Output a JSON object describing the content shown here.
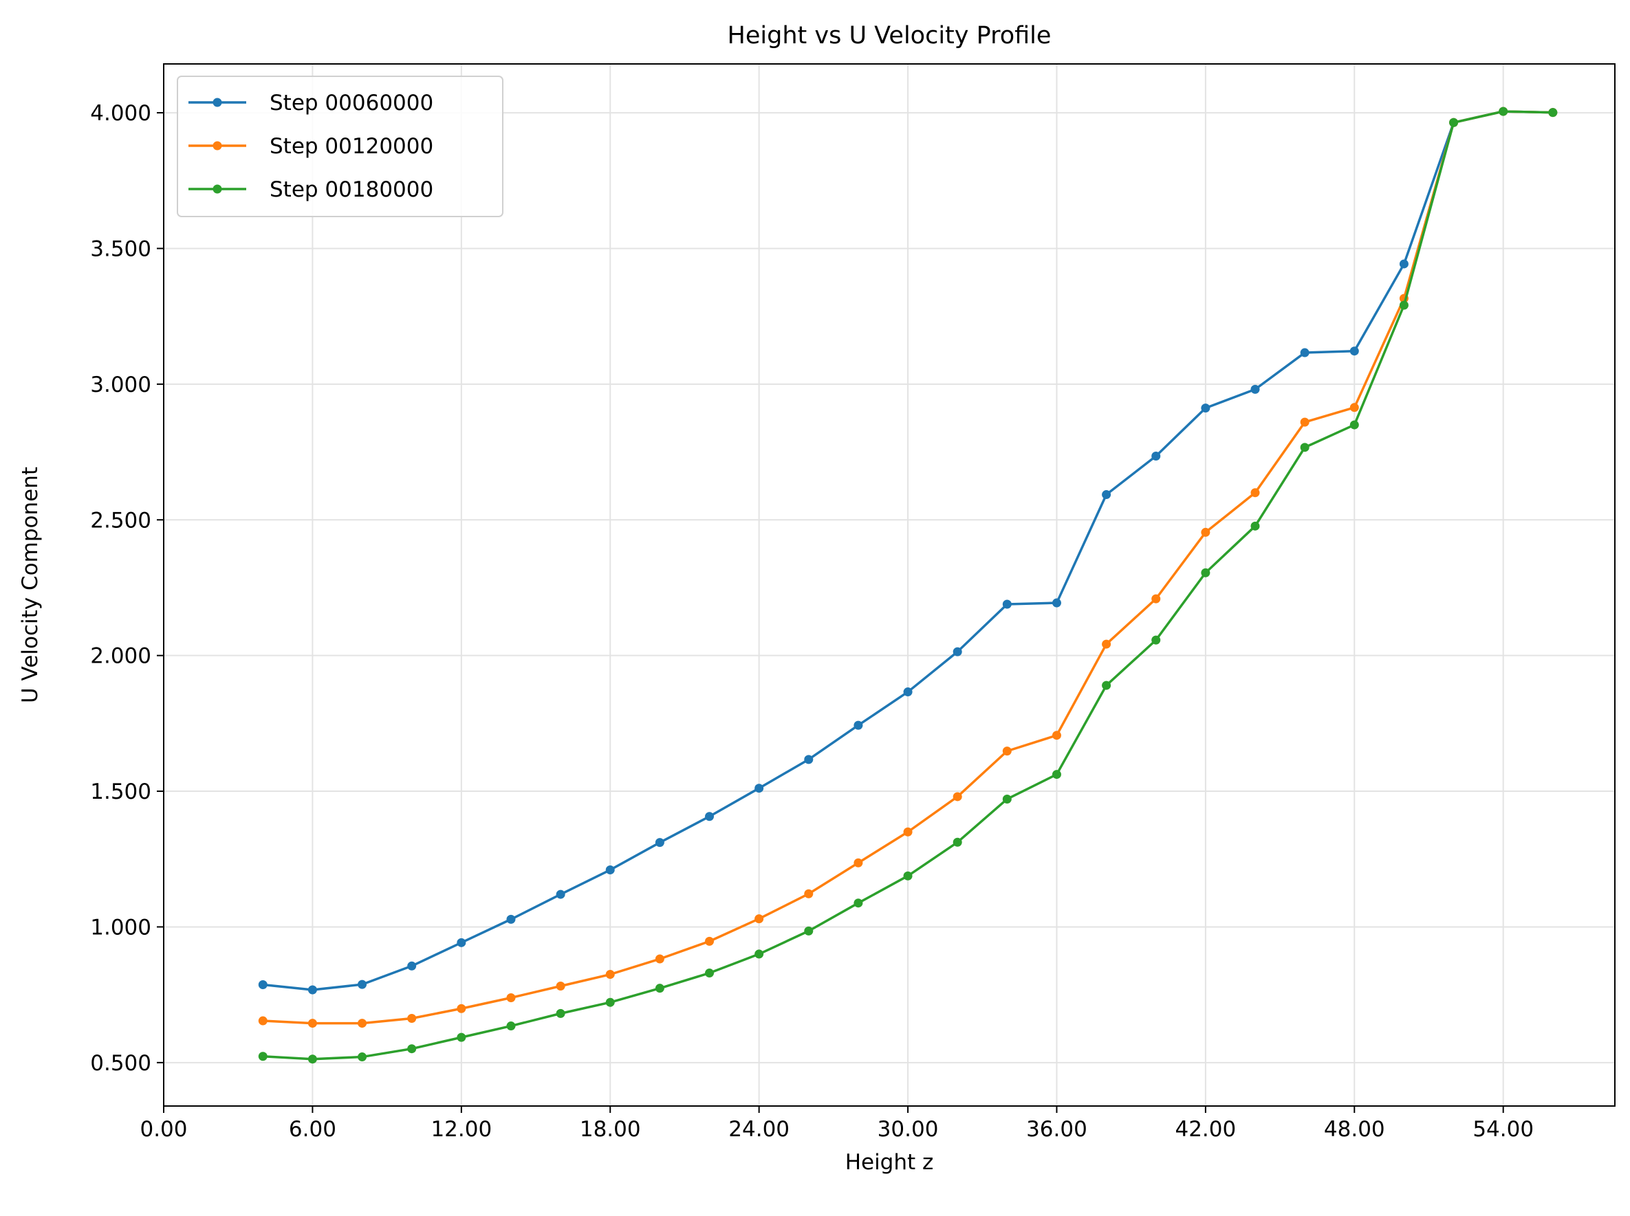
{
  "chart_data": {
    "type": "line",
    "title": "Height vs U Velocity Profile",
    "xlabel": "Height z",
    "ylabel": "U Velocity Component",
    "xlim": [
      0,
      58.5
    ],
    "ylim": [
      0.34,
      4.18
    ],
    "xticks": [
      0,
      6,
      12,
      18,
      24,
      30,
      36,
      42,
      48,
      54
    ],
    "xtick_labels": [
      "0.00",
      "6.00",
      "12.00",
      "18.00",
      "24.00",
      "30.00",
      "36.00",
      "42.00",
      "48.00",
      "54.00"
    ],
    "yticks": [
      0.5,
      1.0,
      1.5,
      2.0,
      2.5,
      3.0,
      3.5,
      4.0
    ],
    "ytick_labels": [
      "0.500",
      "1.000",
      "1.500",
      "2.000",
      "2.500",
      "3.000",
      "3.500",
      "4.000"
    ],
    "grid": true,
    "legend_position": "top-left",
    "x": [
      4,
      6,
      8,
      10,
      12,
      14,
      16,
      18,
      20,
      22,
      24,
      26,
      28,
      30,
      32,
      34,
      36,
      38,
      40,
      42,
      44,
      46,
      48,
      50,
      52,
      54,
      56
    ],
    "series": [
      {
        "name": "Step 00060000",
        "color": "#1f77b4",
        "values": [
          0.787,
          0.768,
          0.788,
          0.856,
          0.942,
          1.028,
          1.12,
          1.21,
          1.311,
          1.407,
          1.511,
          1.617,
          1.743,
          1.866,
          2.014,
          2.189,
          2.194,
          2.593,
          2.735,
          2.912,
          2.981,
          3.116,
          3.122,
          3.443,
          3.964,
          4.005,
          4.001
        ]
      },
      {
        "name": "Step 00120000",
        "color": "#ff7f0e",
        "values": [
          0.654,
          0.645,
          0.645,
          0.663,
          0.699,
          0.739,
          0.782,
          0.825,
          0.882,
          0.947,
          1.03,
          1.122,
          1.236,
          1.35,
          1.48,
          1.648,
          1.706,
          2.042,
          2.209,
          2.454,
          2.6,
          2.86,
          2.914,
          3.316,
          3.964,
          4.005,
          4.001
        ]
      },
      {
        "name": "Step 00180000",
        "color": "#2ca02c",
        "values": [
          0.523,
          0.513,
          0.521,
          0.551,
          0.593,
          0.635,
          0.681,
          0.722,
          0.774,
          0.83,
          0.9,
          0.985,
          1.088,
          1.188,
          1.312,
          1.471,
          1.562,
          1.89,
          2.057,
          2.305,
          2.477,
          2.767,
          2.85,
          3.291,
          3.964,
          4.005,
          4.001
        ]
      }
    ]
  }
}
